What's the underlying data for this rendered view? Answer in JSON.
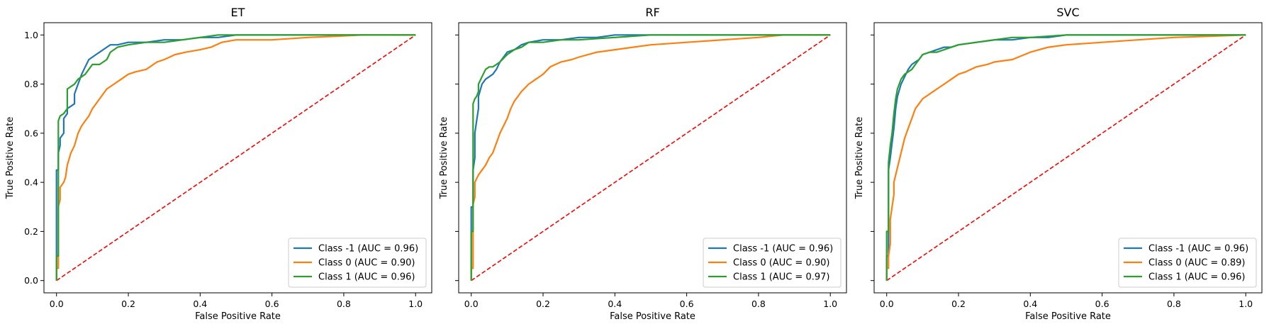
{
  "figure": {
    "xlabel": "False Positive Rate",
    "ylabel": "True Positive Rate",
    "xticks": [
      "0.0",
      "0.2",
      "0.4",
      "0.6",
      "0.8",
      "1.0"
    ],
    "yticks": [
      "0.0",
      "0.2",
      "0.4",
      "0.6",
      "0.8",
      "1.0"
    ],
    "shared_y": true,
    "legend_position": "lower-right"
  },
  "colors": {
    "class_neg1": "#1f77b4",
    "class_0": "#ff7f0e",
    "class_1": "#2ca02c",
    "chance": "#ff0000"
  },
  "chart_data": [
    {
      "type": "line",
      "title": "ET",
      "xlabel": "False Positive Rate",
      "ylabel": "True Positive Rate",
      "xlim": [
        -0.035,
        1.045
      ],
      "ylim": [
        -0.05,
        1.05
      ],
      "series": [
        {
          "name": "Class -1 (AUC = 0.96)",
          "color": "#1f77b4",
          "x": [
            0,
            0,
            0.005,
            0.005,
            0.01,
            0.01,
            0.02,
            0.02,
            0.03,
            0.03,
            0.04,
            0.05,
            0.05,
            0.06,
            0.07,
            0.08,
            0.09,
            0.1,
            0.11,
            0.12,
            0.14,
            0.15,
            0.17,
            0.2,
            0.25,
            0.3,
            0.35,
            0.4,
            0.45,
            0.5,
            0.6,
            0.7,
            0.8,
            0.9,
            1.0
          ],
          "y": [
            0,
            0.45,
            0.45,
            0.52,
            0.55,
            0.58,
            0.6,
            0.66,
            0.68,
            0.7,
            0.71,
            0.72,
            0.76,
            0.8,
            0.84,
            0.87,
            0.9,
            0.91,
            0.92,
            0.93,
            0.95,
            0.96,
            0.96,
            0.97,
            0.97,
            0.98,
            0.98,
            0.99,
            0.99,
            1.0,
            1.0,
            1.0,
            1.0,
            1.0,
            1.0
          ]
        },
        {
          "name": "Class 0 (AUC = 0.90)",
          "color": "#ff7f0e",
          "x": [
            0,
            0,
            0.005,
            0.005,
            0.01,
            0.01,
            0.02,
            0.025,
            0.03,
            0.04,
            0.05,
            0.06,
            0.07,
            0.08,
            0.09,
            0.1,
            0.12,
            0.14,
            0.16,
            0.18,
            0.2,
            0.22,
            0.25,
            0.28,
            0.3,
            0.33,
            0.36,
            0.4,
            0.43,
            0.46,
            0.5,
            0.55,
            0.6,
            0.7,
            0.78,
            0.85,
            1.0
          ],
          "y": [
            0,
            0.05,
            0.05,
            0.3,
            0.33,
            0.38,
            0.4,
            0.42,
            0.47,
            0.52,
            0.55,
            0.6,
            0.63,
            0.65,
            0.67,
            0.7,
            0.74,
            0.78,
            0.8,
            0.82,
            0.84,
            0.85,
            0.86,
            0.89,
            0.9,
            0.92,
            0.93,
            0.94,
            0.95,
            0.97,
            0.98,
            0.98,
            0.98,
            0.99,
            0.995,
            1.0,
            1.0
          ]
        },
        {
          "name": "Class 1 (AUC = 0.96)",
          "color": "#2ca02c",
          "x": [
            0,
            0,
            0.005,
            0.005,
            0.01,
            0.02,
            0.03,
            0.03,
            0.04,
            0.05,
            0.06,
            0.07,
            0.08,
            0.1,
            0.12,
            0.14,
            0.15,
            0.17,
            0.2,
            0.25,
            0.3,
            0.35,
            0.4,
            0.45,
            0.5,
            0.6,
            0.7,
            0.8,
            0.9,
            1.0
          ],
          "y": [
            0,
            0.1,
            0.1,
            0.65,
            0.67,
            0.68,
            0.7,
            0.78,
            0.79,
            0.8,
            0.82,
            0.83,
            0.84,
            0.88,
            0.88,
            0.9,
            0.93,
            0.95,
            0.96,
            0.97,
            0.97,
            0.98,
            0.99,
            1.0,
            1.0,
            1.0,
            1.0,
            1.0,
            1.0,
            1.0
          ]
        }
      ]
    },
    {
      "type": "line",
      "title": "RF",
      "xlabel": "False Positive Rate",
      "ylabel": "True Positive Rate",
      "xlim": [
        -0.035,
        1.045
      ],
      "ylim": [
        -0.05,
        1.05
      ],
      "series": [
        {
          "name": "Class -1 (AUC = 0.96)",
          "color": "#1f77b4",
          "x": [
            0,
            0,
            0.005,
            0.005,
            0.01,
            0.01,
            0.015,
            0.02,
            0.02,
            0.03,
            0.04,
            0.05,
            0.06,
            0.07,
            0.08,
            0.09,
            0.1,
            0.12,
            0.14,
            0.16,
            0.2,
            0.25,
            0.3,
            0.35,
            0.4,
            0.45,
            0.5,
            0.6,
            0.7,
            0.8,
            0.9,
            1.0
          ],
          "y": [
            0,
            0.3,
            0.3,
            0.45,
            0.5,
            0.6,
            0.65,
            0.7,
            0.75,
            0.8,
            0.82,
            0.83,
            0.84,
            0.86,
            0.89,
            0.91,
            0.93,
            0.94,
            0.96,
            0.97,
            0.98,
            0.98,
            0.99,
            0.99,
            1.0,
            1.0,
            1.0,
            1.0,
            1.0,
            1.0,
            1.0,
            1.0
          ]
        },
        {
          "name": "Class 0 (AUC = 0.90)",
          "color": "#ff7f0e",
          "x": [
            0,
            0,
            0.005,
            0.005,
            0.01,
            0.01,
            0.02,
            0.03,
            0.04,
            0.05,
            0.06,
            0.07,
            0.08,
            0.09,
            0.1,
            0.11,
            0.12,
            0.14,
            0.16,
            0.18,
            0.2,
            0.22,
            0.25,
            0.28,
            0.3,
            0.35,
            0.4,
            0.45,
            0.5,
            0.6,
            0.7,
            0.8,
            0.87,
            1.0
          ],
          "y": [
            0,
            0.05,
            0.05,
            0.31,
            0.34,
            0.4,
            0.43,
            0.45,
            0.47,
            0.5,
            0.52,
            0.56,
            0.6,
            0.63,
            0.66,
            0.7,
            0.73,
            0.77,
            0.8,
            0.82,
            0.84,
            0.87,
            0.89,
            0.9,
            0.91,
            0.93,
            0.94,
            0.95,
            0.96,
            0.97,
            0.98,
            0.99,
            1.0,
            1.0
          ]
        },
        {
          "name": "Class 1 (AUC = 0.97)",
          "color": "#2ca02c",
          "x": [
            0,
            0,
            0.005,
            0.005,
            0.01,
            0.015,
            0.02,
            0.02,
            0.03,
            0.04,
            0.05,
            0.06,
            0.07,
            0.08,
            0.1,
            0.12,
            0.14,
            0.16,
            0.2,
            0.25,
            0.3,
            0.4,
            0.5,
            0.6,
            0.7,
            0.8,
            0.9,
            1.0
          ],
          "y": [
            0,
            0.2,
            0.2,
            0.72,
            0.74,
            0.75,
            0.77,
            0.8,
            0.83,
            0.86,
            0.87,
            0.87,
            0.88,
            0.89,
            0.92,
            0.94,
            0.95,
            0.97,
            0.97,
            0.98,
            0.98,
            0.99,
            1.0,
            1.0,
            1.0,
            1.0,
            1.0,
            1.0
          ]
        }
      ]
    },
    {
      "type": "line",
      "title": "SVC",
      "xlabel": "False Positive Rate",
      "ylabel": "True Positive Rate",
      "xlim": [
        -0.035,
        1.045
      ],
      "ylim": [
        -0.05,
        1.05
      ],
      "series": [
        {
          "name": "Class -1 (AUC = 0.96)",
          "color": "#1f77b4",
          "x": [
            0,
            0,
            0.005,
            0.005,
            0.01,
            0.015,
            0.02,
            0.025,
            0.03,
            0.04,
            0.05,
            0.06,
            0.07,
            0.08,
            0.09,
            0.1,
            0.12,
            0.14,
            0.16,
            0.18,
            0.2,
            0.25,
            0.3,
            0.35,
            0.4,
            0.45,
            0.5,
            0.6,
            0.7,
            0.8,
            0.9,
            1.0
          ],
          "y": [
            0,
            0.1,
            0.1,
            0.45,
            0.5,
            0.56,
            0.62,
            0.7,
            0.75,
            0.8,
            0.83,
            0.86,
            0.88,
            0.89,
            0.9,
            0.92,
            0.93,
            0.94,
            0.95,
            0.95,
            0.96,
            0.97,
            0.98,
            0.98,
            0.99,
            0.99,
            1.0,
            1.0,
            1.0,
            1.0,
            1.0,
            1.0
          ]
        },
        {
          "name": "Class 0 (AUC = 0.89)",
          "color": "#ff7f0e",
          "x": [
            0,
            0,
            0.005,
            0.005,
            0.01,
            0.01,
            0.015,
            0.02,
            0.02,
            0.03,
            0.04,
            0.05,
            0.06,
            0.07,
            0.08,
            0.09,
            0.1,
            0.12,
            0.14,
            0.16,
            0.18,
            0.2,
            0.22,
            0.25,
            0.28,
            0.3,
            0.35,
            0.4,
            0.45,
            0.5,
            0.6,
            0.7,
            0.8,
            0.9,
            1.0
          ],
          "y": [
            0,
            0.05,
            0.05,
            0.1,
            0.15,
            0.25,
            0.3,
            0.35,
            0.4,
            0.46,
            0.52,
            0.58,
            0.62,
            0.66,
            0.7,
            0.72,
            0.74,
            0.76,
            0.78,
            0.8,
            0.82,
            0.84,
            0.85,
            0.87,
            0.88,
            0.89,
            0.9,
            0.93,
            0.95,
            0.96,
            0.97,
            0.98,
            0.99,
            0.995,
            1.0
          ]
        },
        {
          "name": "Class 1 (AUC = 0.96)",
          "color": "#2ca02c",
          "x": [
            0,
            0,
            0.005,
            0.005,
            0.01,
            0.015,
            0.02,
            0.025,
            0.03,
            0.04,
            0.05,
            0.06,
            0.07,
            0.08,
            0.09,
            0.1,
            0.12,
            0.14,
            0.16,
            0.18,
            0.2,
            0.25,
            0.3,
            0.35,
            0.4,
            0.5,
            0.6,
            0.7,
            0.8,
            0.9,
            1.0
          ],
          "y": [
            0,
            0.2,
            0.2,
            0.48,
            0.55,
            0.6,
            0.68,
            0.74,
            0.78,
            0.82,
            0.84,
            0.85,
            0.86,
            0.88,
            0.9,
            0.92,
            0.93,
            0.93,
            0.94,
            0.95,
            0.96,
            0.97,
            0.98,
            0.99,
            0.99,
            1.0,
            1.0,
            1.0,
            1.0,
            1.0,
            1.0
          ]
        }
      ]
    }
  ]
}
